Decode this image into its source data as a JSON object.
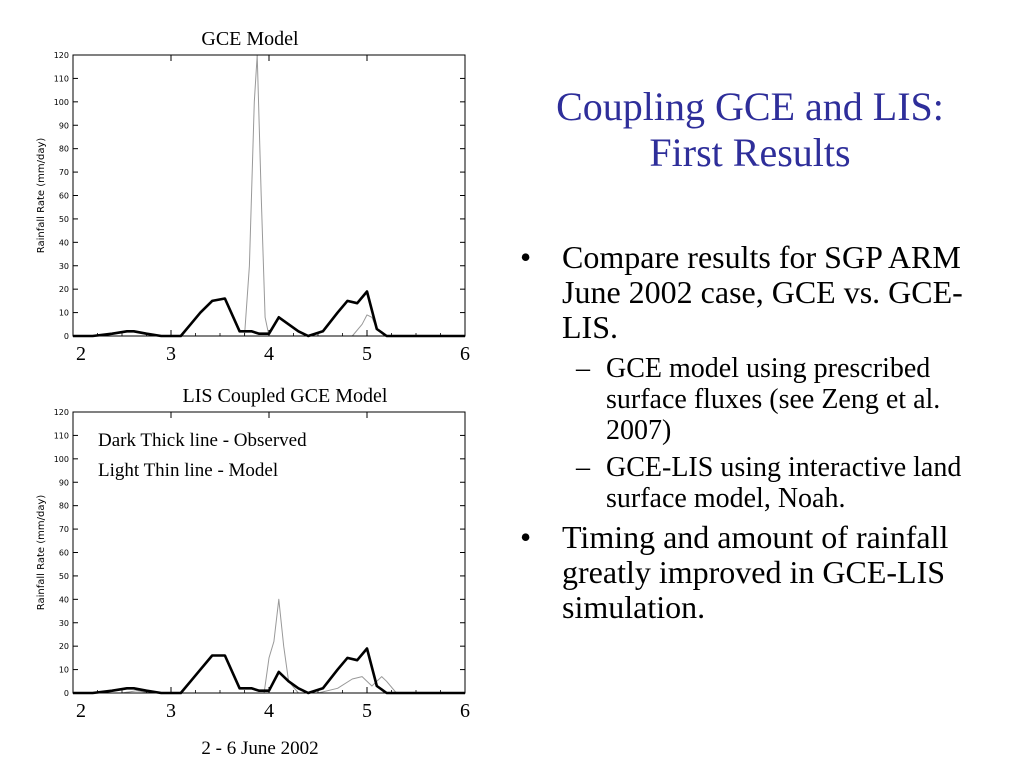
{
  "slide": {
    "title_line1": "Coupling GCE and LIS:",
    "title_line2": "First Results",
    "bullets": [
      {
        "text": "Compare results for SGP ARM June 2002 case, GCE vs. GCE-LIS.",
        "sub": [
          "GCE model using prescribed surface fluxes (see Zeng et al. 2007)",
          "GCE-LIS using interactive land surface model, Noah."
        ]
      },
      {
        "text": "Timing and amount of rainfall greatly improved in GCE-LIS simulation."
      }
    ],
    "bullet_glyph": "•",
    "dash_glyph": "–"
  },
  "legend": {
    "observed": "Dark Thick line - Observed",
    "model": "Light Thin line - Model"
  },
  "colors": {
    "title": "#2e2e9a",
    "observed": "#000000",
    "model": "#999999"
  },
  "chart_data": [
    {
      "type": "line",
      "title": "GCE Model",
      "xlabel": "",
      "ylabel": "Rainfall Rate (mm/day)",
      "xlim": [
        2,
        6
      ],
      "ylim": [
        0,
        120
      ],
      "xticks": [
        2,
        3,
        4,
        5,
        6
      ],
      "yticks": [
        0,
        10,
        20,
        30,
        40,
        50,
        60,
        70,
        80,
        90,
        100,
        110,
        120
      ],
      "series": [
        {
          "style": "observed",
          "x": [
            2.0,
            2.2,
            2.4,
            2.55,
            2.62,
            2.75,
            2.9,
            3.1,
            3.2,
            3.3,
            3.42,
            3.55,
            3.7,
            3.82,
            3.9,
            4.0,
            4.1,
            4.2,
            4.3,
            4.4,
            4.55,
            4.7,
            4.8,
            4.9,
            5.0,
            5.1,
            5.2,
            5.3,
            5.5,
            6.0
          ],
          "y": [
            0,
            0,
            1,
            2,
            2,
            1,
            0,
            0,
            5,
            10,
            15,
            16,
            2,
            2,
            1,
            1,
            8,
            5,
            2,
            0,
            2,
            10,
            15,
            14,
            19,
            3,
            0,
            0,
            0,
            0
          ]
        },
        {
          "style": "model",
          "x": [
            2.0,
            3.7,
            3.75,
            3.8,
            3.85,
            3.88,
            3.92,
            3.96,
            4.0,
            4.5,
            4.85,
            4.95,
            5.0,
            5.05,
            5.1,
            5.2,
            6.0
          ],
          "y": [
            0,
            0,
            0,
            30,
            100,
            120,
            60,
            8,
            0,
            0,
            0,
            5,
            9,
            8,
            3,
            0,
            0
          ]
        }
      ]
    },
    {
      "type": "line",
      "title": "LIS Coupled GCE Model",
      "xlabel": "2 - 6 June 2002",
      "ylabel": "Rainfall Rate (mm/day)",
      "xlim": [
        2,
        6
      ],
      "ylim": [
        0,
        120
      ],
      "xticks": [
        2,
        3,
        4,
        5,
        6
      ],
      "yticks": [
        0,
        10,
        20,
        30,
        40,
        50,
        60,
        70,
        80,
        90,
        100,
        110,
        120
      ],
      "series": [
        {
          "style": "observed",
          "x": [
            2.0,
            2.2,
            2.4,
            2.55,
            2.62,
            2.75,
            2.9,
            3.1,
            3.2,
            3.3,
            3.42,
            3.55,
            3.7,
            3.82,
            3.9,
            4.0,
            4.1,
            4.2,
            4.3,
            4.4,
            4.55,
            4.7,
            4.8,
            4.9,
            5.0,
            5.1,
            5.2,
            5.3,
            5.5,
            6.0
          ],
          "y": [
            0,
            0,
            1,
            2,
            2,
            1,
            0,
            0,
            5,
            10,
            16,
            16,
            2,
            2,
            1,
            1,
            9,
            5,
            2,
            0,
            2,
            10,
            15,
            14,
            19,
            3,
            0,
            0,
            0,
            0
          ]
        },
        {
          "style": "model",
          "x": [
            2.0,
            2.5,
            2.65,
            2.8,
            3.3,
            3.95,
            4.0,
            4.05,
            4.1,
            4.15,
            4.2,
            4.3,
            4.5,
            4.7,
            4.85,
            4.95,
            5.05,
            5.15,
            5.2,
            5.3,
            6.0
          ],
          "y": [
            0,
            0,
            1,
            0,
            0,
            0,
            15,
            22,
            40,
            20,
            5,
            0,
            0,
            2,
            6,
            7,
            3,
            7,
            5,
            0,
            0
          ]
        }
      ]
    }
  ]
}
